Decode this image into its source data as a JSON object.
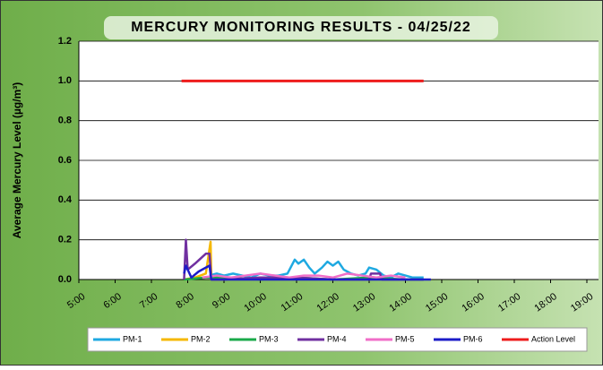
{
  "chart_data": {
    "type": "line",
    "title": "MERCURY MONITORING RESULTS - 04/25/22",
    "ylabel": "Average Mercury Level (µg/m³)",
    "xlim": [
      5,
      19
    ],
    "xticks": [
      {
        "value": 5,
        "label": "5:00"
      },
      {
        "value": 6,
        "label": "6:00"
      },
      {
        "value": 7,
        "label": "7:00"
      },
      {
        "value": 8,
        "label": "8:00"
      },
      {
        "value": 9,
        "label": "9:00"
      },
      {
        "value": 10,
        "label": "10:00"
      },
      {
        "value": 11,
        "label": "11:00"
      },
      {
        "value": 12,
        "label": "12:00"
      },
      {
        "value": 13,
        "label": "13:00"
      },
      {
        "value": 14,
        "label": "14:00"
      },
      {
        "value": 15,
        "label": "15:00"
      },
      {
        "value": 16,
        "label": "16:00"
      },
      {
        "value": 17,
        "label": "17:00"
      },
      {
        "value": 18,
        "label": "18:00"
      },
      {
        "value": 19,
        "label": "19:00"
      }
    ],
    "ylim": [
      0,
      1.2
    ],
    "yticks": [
      {
        "value": 0,
        "label": "0.0"
      },
      0.2,
      0.4,
      0.6,
      0.8,
      {
        "value": 1,
        "label": "1.0"
      },
      1.2
    ],
    "grid": true,
    "legend": "bottom",
    "series": [
      {
        "name": "PM-1",
        "color": "#1fa9e1",
        "x": [
          8.6,
          8.8,
          9.0,
          9.25,
          9.5,
          9.75,
          10.0,
          10.25,
          10.5,
          10.75,
          10.95,
          11.05,
          11.2,
          11.35,
          11.5,
          11.7,
          11.85,
          12.0,
          12.15,
          12.3,
          12.5,
          12.7,
          12.9,
          13.0,
          13.2,
          13.4,
          13.6,
          13.8,
          14.0,
          14.2,
          14.5
        ],
        "values": [
          0.02,
          0.03,
          0.02,
          0.03,
          0.02,
          0.01,
          0.03,
          0.02,
          0.02,
          0.03,
          0.1,
          0.08,
          0.1,
          0.06,
          0.03,
          0.06,
          0.09,
          0.07,
          0.09,
          0.05,
          0.03,
          0.02,
          0.03,
          0.06,
          0.05,
          0.02,
          0.01,
          0.03,
          0.02,
          0.01,
          0.01
        ]
      },
      {
        "name": "PM-2",
        "color": "#f5b800",
        "x": [
          7.9,
          8.2,
          8.5,
          8.63,
          8.65,
          8.7,
          9.0
        ],
        "values": [
          0,
          0.01,
          0.03,
          0.19,
          0.02,
          0,
          0
        ]
      },
      {
        "name": "PM-3",
        "color": "#1aaa4a",
        "x": [
          7.9,
          8.5,
          9.0,
          10,
          11,
          12,
          13,
          14,
          14.5
        ],
        "values": [
          0,
          0.01,
          0.01,
          0,
          0.01,
          0,
          0.01,
          0,
          0
        ]
      },
      {
        "name": "PM-4",
        "color": "#7030a0",
        "x": [
          7.9,
          7.95,
          8.0,
          8.2,
          8.5,
          8.6,
          8.65,
          9.0,
          10,
          11,
          12,
          13.0,
          13.05,
          13.3,
          13.35,
          14,
          14.5
        ],
        "values": [
          0,
          0.2,
          0.05,
          0.08,
          0.13,
          0.13,
          0,
          0,
          0.01,
          0.01,
          0,
          0,
          0.03,
          0.03,
          0,
          0,
          0
        ]
      },
      {
        "name": "PM-5",
        "color": "#f06ec8",
        "x": [
          8.4,
          8.8,
          9.2,
          9.6,
          10.0,
          10.4,
          10.8,
          11.2,
          11.6,
          12.0,
          12.4,
          12.8,
          13.2,
          13.6,
          14.0
        ],
        "values": [
          0.01,
          0.02,
          0.01,
          0.02,
          0.03,
          0.02,
          0.01,
          0.02,
          0.02,
          0.01,
          0.03,
          0.02,
          0.01,
          0.02,
          0.01
        ]
      },
      {
        "name": "PM-6",
        "color": "#1c1cc8",
        "x": [
          7.9,
          7.95,
          8.1,
          8.3,
          8.6,
          8.65,
          9,
          10,
          11,
          12,
          13,
          14,
          14.7
        ],
        "values": [
          0.03,
          0.07,
          0.01,
          0.04,
          0.07,
          0,
          0,
          0,
          0,
          0,
          0,
          0,
          0
        ]
      },
      {
        "name": "Action Level",
        "color": "#ee1c1c",
        "x": [
          7.83,
          14.5
        ],
        "values": [
          1,
          1
        ]
      }
    ]
  }
}
